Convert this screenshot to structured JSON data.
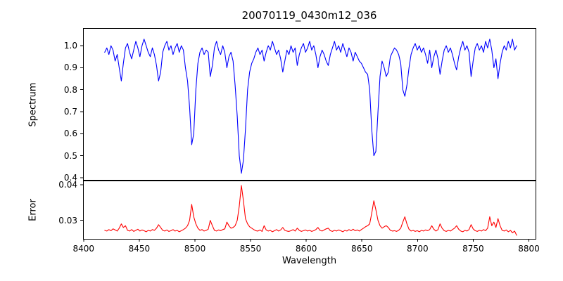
{
  "chart_data": {
    "type": "line",
    "title": "20070119_0430m12_036",
    "xlabel": "Wavelength",
    "xlim": [
      8399.5,
      8806.0
    ],
    "xticks": [
      8400,
      8450,
      8500,
      8550,
      8600,
      8650,
      8700,
      8750,
      8800
    ],
    "xtick_labels": [
      "8400",
      "8450",
      "8500",
      "8550",
      "8600",
      "8650",
      "8700",
      "8750",
      "8800"
    ],
    "x_start": 8419,
    "x_step": 1.8593,
    "x_end": 8789,
    "n_points": 200,
    "grid": false,
    "legend": "none",
    "panels": [
      {
        "name": "spectrum",
        "ylabel": "Spectrum",
        "color": "#0000ff",
        "ylim": [
          0.387,
          1.08
        ],
        "yticks": [
          1.0,
          0.9,
          0.8,
          0.7,
          0.6,
          0.5,
          0.4
        ],
        "ytick_labels": [
          "1.0",
          "0.9",
          "0.8",
          "0.7",
          "0.6",
          "0.5",
          "0.4"
        ],
        "absorption_lines": [
          {
            "wavelength": 8498,
            "min": 0.55
          },
          {
            "wavelength": 8542,
            "min": 0.42
          },
          {
            "wavelength": 8662,
            "min": 0.5
          },
          {
            "wavelength": 8688,
            "min": 0.77
          }
        ],
        "values": [
          0.97,
          0.99,
          0.96,
          1.0,
          0.98,
          0.93,
          0.96,
          0.9,
          0.84,
          0.92,
          0.99,
          1.01,
          0.97,
          0.94,
          0.98,
          1.02,
          0.99,
          0.95,
          1.0,
          1.03,
          1.0,
          0.97,
          0.95,
          0.99,
          0.96,
          0.91,
          0.84,
          0.88,
          0.97,
          1.0,
          1.02,
          0.98,
          1.0,
          0.96,
          0.99,
          1.01,
          0.97,
          1.0,
          0.98,
          0.9,
          0.84,
          0.72,
          0.55,
          0.6,
          0.8,
          0.92,
          0.97,
          0.99,
          0.96,
          0.98,
          0.97,
          0.86,
          0.91,
          0.99,
          1.02,
          0.98,
          0.96,
          1.0,
          0.97,
          0.9,
          0.95,
          0.97,
          0.93,
          0.82,
          0.68,
          0.5,
          0.42,
          0.48,
          0.62,
          0.8,
          0.88,
          0.92,
          0.94,
          0.97,
          0.99,
          0.96,
          0.98,
          0.93,
          0.97,
          1.0,
          0.98,
          1.02,
          0.99,
          0.96,
          0.98,
          0.94,
          0.88,
          0.93,
          0.98,
          0.96,
          1.0,
          0.97,
          0.99,
          0.91,
          0.96,
          0.99,
          1.01,
          0.97,
          0.99,
          1.02,
          0.98,
          1.0,
          0.96,
          0.9,
          0.95,
          0.98,
          0.96,
          0.93,
          0.91,
          0.96,
          0.99,
          1.02,
          0.98,
          1.0,
          0.97,
          1.01,
          0.98,
          0.95,
          0.99,
          0.97,
          0.93,
          0.97,
          0.95,
          0.93,
          0.92,
          0.9,
          0.88,
          0.87,
          0.8,
          0.62,
          0.5,
          0.52,
          0.7,
          0.86,
          0.93,
          0.9,
          0.86,
          0.88,
          0.95,
          0.97,
          0.99,
          0.98,
          0.96,
          0.92,
          0.8,
          0.77,
          0.82,
          0.9,
          0.96,
          0.99,
          1.01,
          0.98,
          1.0,
          0.97,
          0.99,
          0.96,
          0.92,
          0.98,
          0.9,
          0.95,
          0.98,
          0.94,
          0.87,
          0.93,
          0.98,
          1.0,
          0.97,
          0.99,
          0.96,
          0.92,
          0.89,
          0.95,
          0.99,
          1.02,
          0.98,
          1.0,
          0.97,
          0.86,
          0.93,
          0.99,
          1.01,
          0.98,
          1.0,
          0.97,
          1.02,
          0.99,
          1.03,
          0.98,
          0.9,
          0.94,
          0.85,
          0.92,
          0.97,
          1.0,
          0.98,
          1.02,
          0.99,
          1.03,
          0.98,
          1.0
        ]
      },
      {
        "name": "error",
        "ylabel": "Error",
        "color": "#ff0000",
        "ylim": [
          0.0248,
          0.0412
        ],
        "yticks": [
          0.04,
          0.03
        ],
        "ytick_labels": [
          "0.04",
          "0.03"
        ],
        "values": [
          0.0272,
          0.027,
          0.0274,
          0.0271,
          0.0276,
          0.0273,
          0.027,
          0.0278,
          0.029,
          0.028,
          0.0285,
          0.0272,
          0.027,
          0.0274,
          0.0269,
          0.0272,
          0.0275,
          0.027,
          0.0273,
          0.0271,
          0.0268,
          0.0272,
          0.027,
          0.0274,
          0.0272,
          0.0278,
          0.0288,
          0.028,
          0.0272,
          0.027,
          0.0273,
          0.0269,
          0.0271,
          0.0274,
          0.027,
          0.0272,
          0.0268,
          0.0271,
          0.0274,
          0.0278,
          0.0285,
          0.03,
          0.0345,
          0.031,
          0.029,
          0.0278,
          0.0272,
          0.0274,
          0.027,
          0.0272,
          0.0275,
          0.03,
          0.0285,
          0.0272,
          0.027,
          0.0273,
          0.0271,
          0.0274,
          0.0276,
          0.0295,
          0.0285,
          0.0278,
          0.028,
          0.0285,
          0.03,
          0.034,
          0.0398,
          0.0355,
          0.0305,
          0.029,
          0.0282,
          0.0278,
          0.0274,
          0.0271,
          0.027,
          0.0273,
          0.0269,
          0.0285,
          0.0273,
          0.027,
          0.0272,
          0.0268,
          0.0271,
          0.0274,
          0.027,
          0.0273,
          0.028,
          0.0272,
          0.027,
          0.0269,
          0.0271,
          0.0274,
          0.027,
          0.0278,
          0.0272,
          0.0269,
          0.0271,
          0.0273,
          0.027,
          0.0272,
          0.0269,
          0.0271,
          0.0274,
          0.028,
          0.0272,
          0.027,
          0.0273,
          0.0276,
          0.0278,
          0.0271,
          0.0269,
          0.0272,
          0.027,
          0.0273,
          0.0271,
          0.0268,
          0.0272,
          0.027,
          0.0274,
          0.0271,
          0.0275,
          0.0271,
          0.0273,
          0.027,
          0.0274,
          0.0278,
          0.0282,
          0.0285,
          0.029,
          0.032,
          0.0355,
          0.033,
          0.03,
          0.0285,
          0.0278,
          0.0282,
          0.0285,
          0.028,
          0.0272,
          0.027,
          0.0271,
          0.0269,
          0.0272,
          0.0278,
          0.0295,
          0.031,
          0.029,
          0.0275,
          0.027,
          0.0272,
          0.0269,
          0.0271,
          0.0268,
          0.0272,
          0.027,
          0.0273,
          0.0271,
          0.0274,
          0.0285,
          0.0275,
          0.027,
          0.0274,
          0.029,
          0.0278,
          0.0271,
          0.0269,
          0.0272,
          0.027,
          0.0274,
          0.0278,
          0.0285,
          0.0275,
          0.027,
          0.0268,
          0.0272,
          0.027,
          0.0274,
          0.0288,
          0.0276,
          0.0271,
          0.0269,
          0.0272,
          0.027,
          0.0274,
          0.0271,
          0.0278,
          0.031,
          0.0285,
          0.0295,
          0.028,
          0.0305,
          0.0285,
          0.0272,
          0.027,
          0.0273,
          0.0268,
          0.0272,
          0.0265,
          0.027,
          0.0258
        ]
      }
    ]
  }
}
